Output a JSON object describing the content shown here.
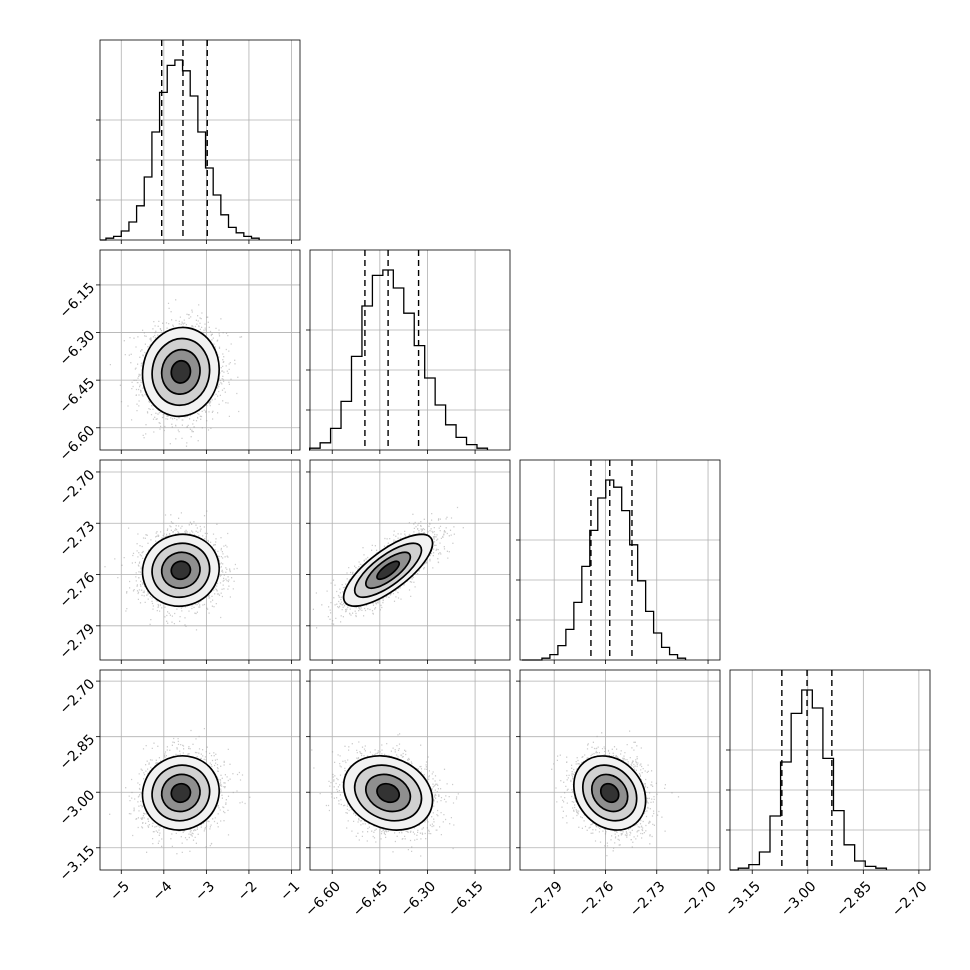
{
  "chart_data": {
    "type": "corner",
    "parameters": [
      {
        "index": 0,
        "range": [
          -5.5,
          -0.8
        ],
        "ticks": [
          -5,
          -4,
          -3,
          -2,
          -1
        ],
        "tick_labels": [
          "−5",
          "−4",
          "−3",
          "−2",
          "−1"
        ],
        "quantiles": [
          -4.05,
          -3.55,
          -2.98
        ],
        "median": -3.55,
        "sigma": 0.45
      },
      {
        "index": 1,
        "range": [
          -6.67,
          -6.04
        ],
        "ticks": [
          -6.6,
          -6.45,
          -6.3,
          -6.15
        ],
        "tick_labels": [
          "−6.60",
          "−6.45",
          "−6.30",
          "−6.15"
        ],
        "quantiles": [
          -6.497,
          -6.424,
          -6.328
        ],
        "median": -6.424,
        "sigma": 0.07
      },
      {
        "index": 2,
        "range": [
          -2.81,
          -2.693
        ],
        "ticks": [
          -2.79,
          -2.76,
          -2.73,
          -2.7
        ],
        "tick_labels": [
          "−2.79",
          "−2.76",
          "−2.73",
          "−2.70"
        ],
        "quantiles": [
          -2.7685,
          -2.7575,
          -2.7445
        ],
        "median": -2.7575,
        "sigma": 0.0105
      },
      {
        "index": 3,
        "range": [
          -3.21,
          -2.67
        ],
        "ticks": [
          -3.15,
          -3.0,
          -2.85,
          -2.7
        ],
        "tick_labels": [
          "−3.15",
          "−3.00",
          "−2.85",
          "−2.70"
        ],
        "quantiles": [
          -3.07,
          -3.002,
          -2.935
        ],
        "median": -3.002,
        "sigma": 0.05
      }
    ],
    "histograms": [
      {
        "param": 0,
        "peak_at": -3.65,
        "normalized_counts": [
          0.01,
          0.02,
          0.05,
          0.1,
          0.19,
          0.35,
          0.6,
          0.82,
          0.97,
          1.0,
          0.94,
          0.8,
          0.6,
          0.4,
          0.25,
          0.14,
          0.07,
          0.04,
          0.02,
          0.01
        ]
      },
      {
        "param": 1,
        "peak_at": -6.424,
        "normalized_counts": [
          0.01,
          0.04,
          0.12,
          0.27,
          0.52,
          0.8,
          0.97,
          1.0,
          0.9,
          0.76,
          0.58,
          0.4,
          0.25,
          0.14,
          0.07,
          0.03,
          0.01
        ]
      },
      {
        "param": 2,
        "peak_at": -2.7575,
        "normalized_counts": [
          0.01,
          0.03,
          0.08,
          0.17,
          0.32,
          0.52,
          0.72,
          0.9,
          1.0,
          0.96,
          0.83,
          0.64,
          0.44,
          0.27,
          0.15,
          0.07,
          0.03,
          0.01
        ]
      },
      {
        "param": 3,
        "peak_at": -3.002,
        "normalized_counts": [
          0.01,
          0.03,
          0.1,
          0.3,
          0.6,
          0.87,
          1.0,
          0.9,
          0.62,
          0.33,
          0.14,
          0.05,
          0.02,
          0.01
        ]
      }
    ],
    "pairs": [
      {
        "x_param": 0,
        "y_param": 1,
        "center": [
          -3.6,
          -6.424
        ],
        "correlation": 0.05
      },
      {
        "x_param": 0,
        "y_param": 2,
        "center": [
          -3.6,
          -2.7575
        ],
        "correlation": 0.05
      },
      {
        "x_param": 1,
        "y_param": 2,
        "center": [
          -6.424,
          -2.7575
        ],
        "correlation": 0.75
      },
      {
        "x_param": 0,
        "y_param": 3,
        "center": [
          -3.6,
          -3.002
        ],
        "correlation": 0.05
      },
      {
        "x_param": 1,
        "y_param": 3,
        "center": [
          -6.424,
          -3.002
        ],
        "correlation": -0.2
      },
      {
        "x_param": 2,
        "y_param": 3,
        "center": [
          -2.7575,
          -3.002
        ],
        "correlation": -0.2
      }
    ],
    "contour_levels_sigma": [
      0.5,
      1.0,
      1.5,
      2.0
    ],
    "grid": true,
    "title": "",
    "legend": ""
  }
}
